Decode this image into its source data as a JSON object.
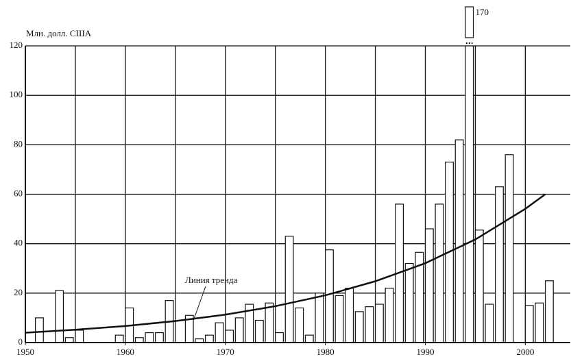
{
  "chart_data": {
    "type": "bar",
    "ylabel": "Млн. долл. США",
    "x": [
      1951,
      1953,
      1954,
      1955,
      1959,
      1960,
      1961,
      1962,
      1963,
      1964,
      1966,
      1967,
      1968,
      1969,
      1970,
      1971,
      1972,
      1973,
      1974,
      1975,
      1976,
      1977,
      1978,
      1979,
      1980,
      1981,
      1982,
      1983,
      1984,
      1985,
      1986,
      1987,
      1988,
      1989,
      1990,
      1991,
      1992,
      1993,
      1994,
      1995,
      1996,
      1997,
      1998,
      2000,
      2001,
      2002
    ],
    "values": [
      10,
      21,
      2,
      5,
      3,
      14,
      2,
      4,
      4,
      17,
      11,
      1.5,
      3,
      8,
      5,
      10,
      15.5,
      9,
      16,
      4,
      43,
      14,
      3,
      20,
      37.5,
      19,
      22,
      12.5,
      14.5,
      15.5,
      22,
      56,
      32,
      36.5,
      46,
      56,
      73,
      82,
      170,
      45.5,
      15.5,
      63,
      76,
      15,
      16,
      25
    ],
    "value_labels": [
      null,
      null,
      null,
      null,
      null,
      null,
      null,
      null,
      null,
      null,
      null,
      null,
      null,
      null,
      null,
      null,
      null,
      null,
      null,
      null,
      null,
      null,
      null,
      null,
      null,
      null,
      null,
      null,
      null,
      null,
      null,
      null,
      null,
      null,
      null,
      null,
      null,
      null,
      "170",
      null,
      null,
      null,
      null,
      null,
      null,
      null
    ],
    "color": "#ffffff",
    "trend": {
      "name": "Линия тренда",
      "color": "#111111",
      "x": [
        1950,
        1955,
        1960,
        1965,
        1970,
        1975,
        1980,
        1985,
        1990,
        1995,
        2000,
        2002
      ],
      "values": [
        4,
        5.2,
        6.7,
        8.7,
        11.3,
        14.7,
        19.1,
        24.8,
        32.1,
        41.7,
        54.1,
        60
      ]
    },
    "xlim": [
      1950,
      2004.5
    ],
    "xticks": [
      1950,
      1960,
      1970,
      1980,
      1990,
      2000
    ],
    "x_gridlines": [
      1950,
      1955,
      1960,
      1965,
      1970,
      1975,
      1980,
      1985,
      1990,
      1995,
      2000
    ],
    "ylim": [
      0,
      120
    ],
    "yticks": [
      0,
      20,
      40,
      60,
      80,
      100,
      120
    ],
    "grid": true
  }
}
